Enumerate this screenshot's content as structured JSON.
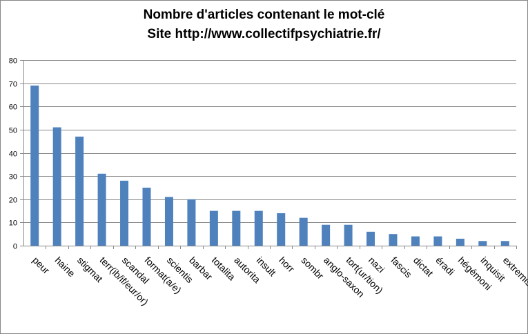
{
  "chart_data": {
    "type": "bar",
    "title": "Nombre d'articles contenant le mot-clé",
    "subtitle": "Site http://www.collectifpsychiatrie.fr/",
    "xlabel": "",
    "ylabel": "",
    "ylim": [
      0,
      80
    ],
    "yticks": [
      0,
      10,
      20,
      30,
      40,
      50,
      60,
      70,
      80
    ],
    "grid": true,
    "legend": "none",
    "bar_color": "#4F81BD",
    "categories": [
      "peur",
      "haine",
      "stigmat",
      "terr(ib/if/eur/or)",
      "scandal",
      "format(a/e)",
      "scientis",
      "barbar",
      "totalita",
      "autorita",
      "insult",
      "horr",
      "sombr",
      "anglo-saxon",
      "tort(ur/tion)",
      "nazi",
      "fascis",
      "dictat",
      "éradi",
      "hégémoni",
      "inquisit",
      "extremis"
    ],
    "values": [
      69,
      51,
      47,
      31,
      28,
      25,
      21,
      20,
      15,
      15,
      15,
      14,
      12,
      9,
      9,
      6,
      5,
      4,
      4,
      3,
      2,
      2
    ]
  }
}
